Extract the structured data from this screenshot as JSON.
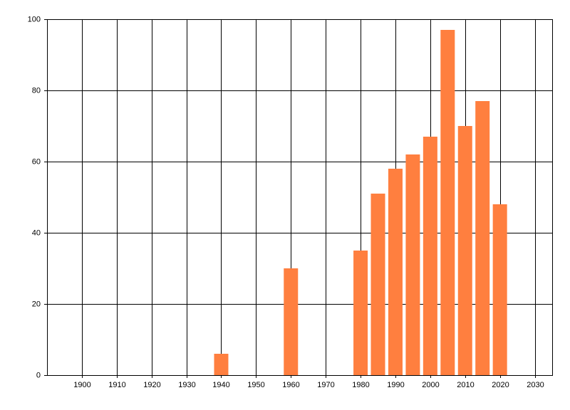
{
  "chart_data": {
    "type": "bar",
    "x": [
      1940,
      1960,
      1980,
      1985,
      1990,
      1995,
      2000,
      2005,
      2010,
      2015,
      2020
    ],
    "values": [
      6,
      30,
      35,
      51,
      58,
      62,
      67,
      97,
      70,
      77,
      48
    ],
    "color": "#ff7f3f",
    "xlim": [
      1890,
      2035
    ],
    "xticks": [
      1900,
      1910,
      1920,
      1930,
      1940,
      1950,
      1960,
      1970,
      1980,
      1990,
      2000,
      2010,
      2020,
      2030
    ],
    "ylim": [
      0,
      100
    ],
    "yticks": [
      0,
      20,
      40,
      60,
      80,
      100
    ],
    "grid": true
  }
}
